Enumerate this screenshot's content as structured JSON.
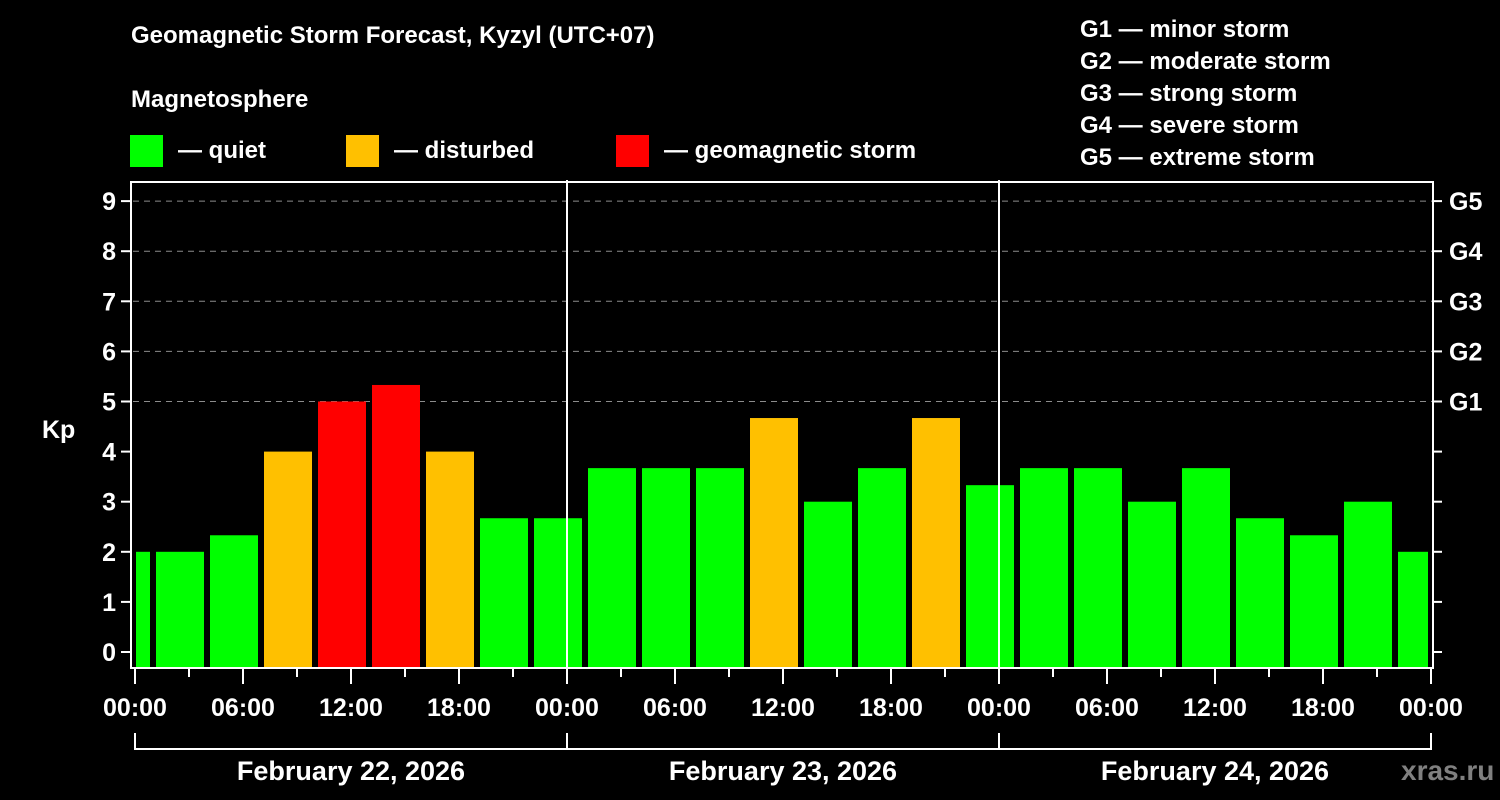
{
  "header": {
    "title": "Geomagnetic Storm Forecast, Kyzyl (UTC+07)",
    "subtitle": "Magnetosphere"
  },
  "legend": [
    {
      "label": "— quiet",
      "color": "#00ff00"
    },
    {
      "label": "— disturbed",
      "color": "#ffc000"
    },
    {
      "label": "— geomagnetic storm",
      "color": "#ff0000"
    }
  ],
  "storm_scale": [
    "G1 — minor storm",
    "G2 — moderate storm",
    "G3 — strong storm",
    "G4 — severe storm",
    "G5 — extreme storm"
  ],
  "watermark": "xras.ru",
  "chart_data": {
    "type": "bar",
    "title": "Geomagnetic Storm Forecast, Kyzyl (UTC+07)",
    "subtitle": "Magnetosphere",
    "ylabel": "Kp",
    "xlabel": "",
    "ylim": [
      0,
      9
    ],
    "yticks": [
      0,
      1,
      2,
      3,
      4,
      5,
      6,
      7,
      8,
      9
    ],
    "right_axis_labels": [
      {
        "kp": 5,
        "label": "G1"
      },
      {
        "kp": 6,
        "label": "G2"
      },
      {
        "kp": 7,
        "label": "G3"
      },
      {
        "kp": 8,
        "label": "G4"
      },
      {
        "kp": 9,
        "label": "G5"
      }
    ],
    "grid": "dashed horizontal at Kp 5–9",
    "x_tick_labels": [
      "00:00",
      "06:00",
      "12:00",
      "18:00",
      "00:00",
      "06:00",
      "12:00",
      "18:00",
      "00:00",
      "06:00",
      "12:00",
      "18:00",
      "00:00"
    ],
    "days": [
      "February 22, 2026",
      "February 23, 2026",
      "February 24, 2026"
    ],
    "bar_interval_hours": 3,
    "bar_start_offset_hours": -2,
    "categories": [
      "Feb 22 00:00",
      "Feb 22 01:00",
      "Feb 22 04:00",
      "Feb 22 07:00",
      "Feb 22 10:00",
      "Feb 22 13:00",
      "Feb 22 16:00",
      "Feb 22 19:00",
      "Feb 22 22:00",
      "Feb 23 01:00",
      "Feb 23 04:00",
      "Feb 23 07:00",
      "Feb 23 10:00",
      "Feb 23 13:00",
      "Feb 23 16:00",
      "Feb 23 19:00",
      "Feb 23 22:00",
      "Feb 24 01:00",
      "Feb 24 04:00",
      "Feb 24 07:00",
      "Feb 24 10:00",
      "Feb 24 13:00",
      "Feb 24 16:00",
      "Feb 24 19:00",
      "Feb 24 22:00"
    ],
    "values": [
      2.0,
      2.0,
      2.33,
      4.0,
      5.0,
      5.33,
      4.0,
      2.67,
      2.67,
      3.67,
      3.67,
      3.67,
      4.67,
      3.0,
      3.67,
      4.67,
      3.33,
      3.67,
      3.67,
      3.0,
      3.67,
      2.67,
      2.33,
      3.0,
      2.0
    ],
    "status": [
      "quiet",
      "quiet",
      "quiet",
      "disturbed",
      "storm",
      "storm",
      "disturbed",
      "quiet",
      "quiet",
      "quiet",
      "quiet",
      "quiet",
      "disturbed",
      "quiet",
      "quiet",
      "disturbed",
      "quiet",
      "quiet",
      "quiet",
      "quiet",
      "quiet",
      "quiet",
      "quiet",
      "quiet",
      "quiet"
    ],
    "colors": {
      "quiet": "#00ff00",
      "disturbed": "#ffc000",
      "storm": "#ff0000"
    }
  }
}
